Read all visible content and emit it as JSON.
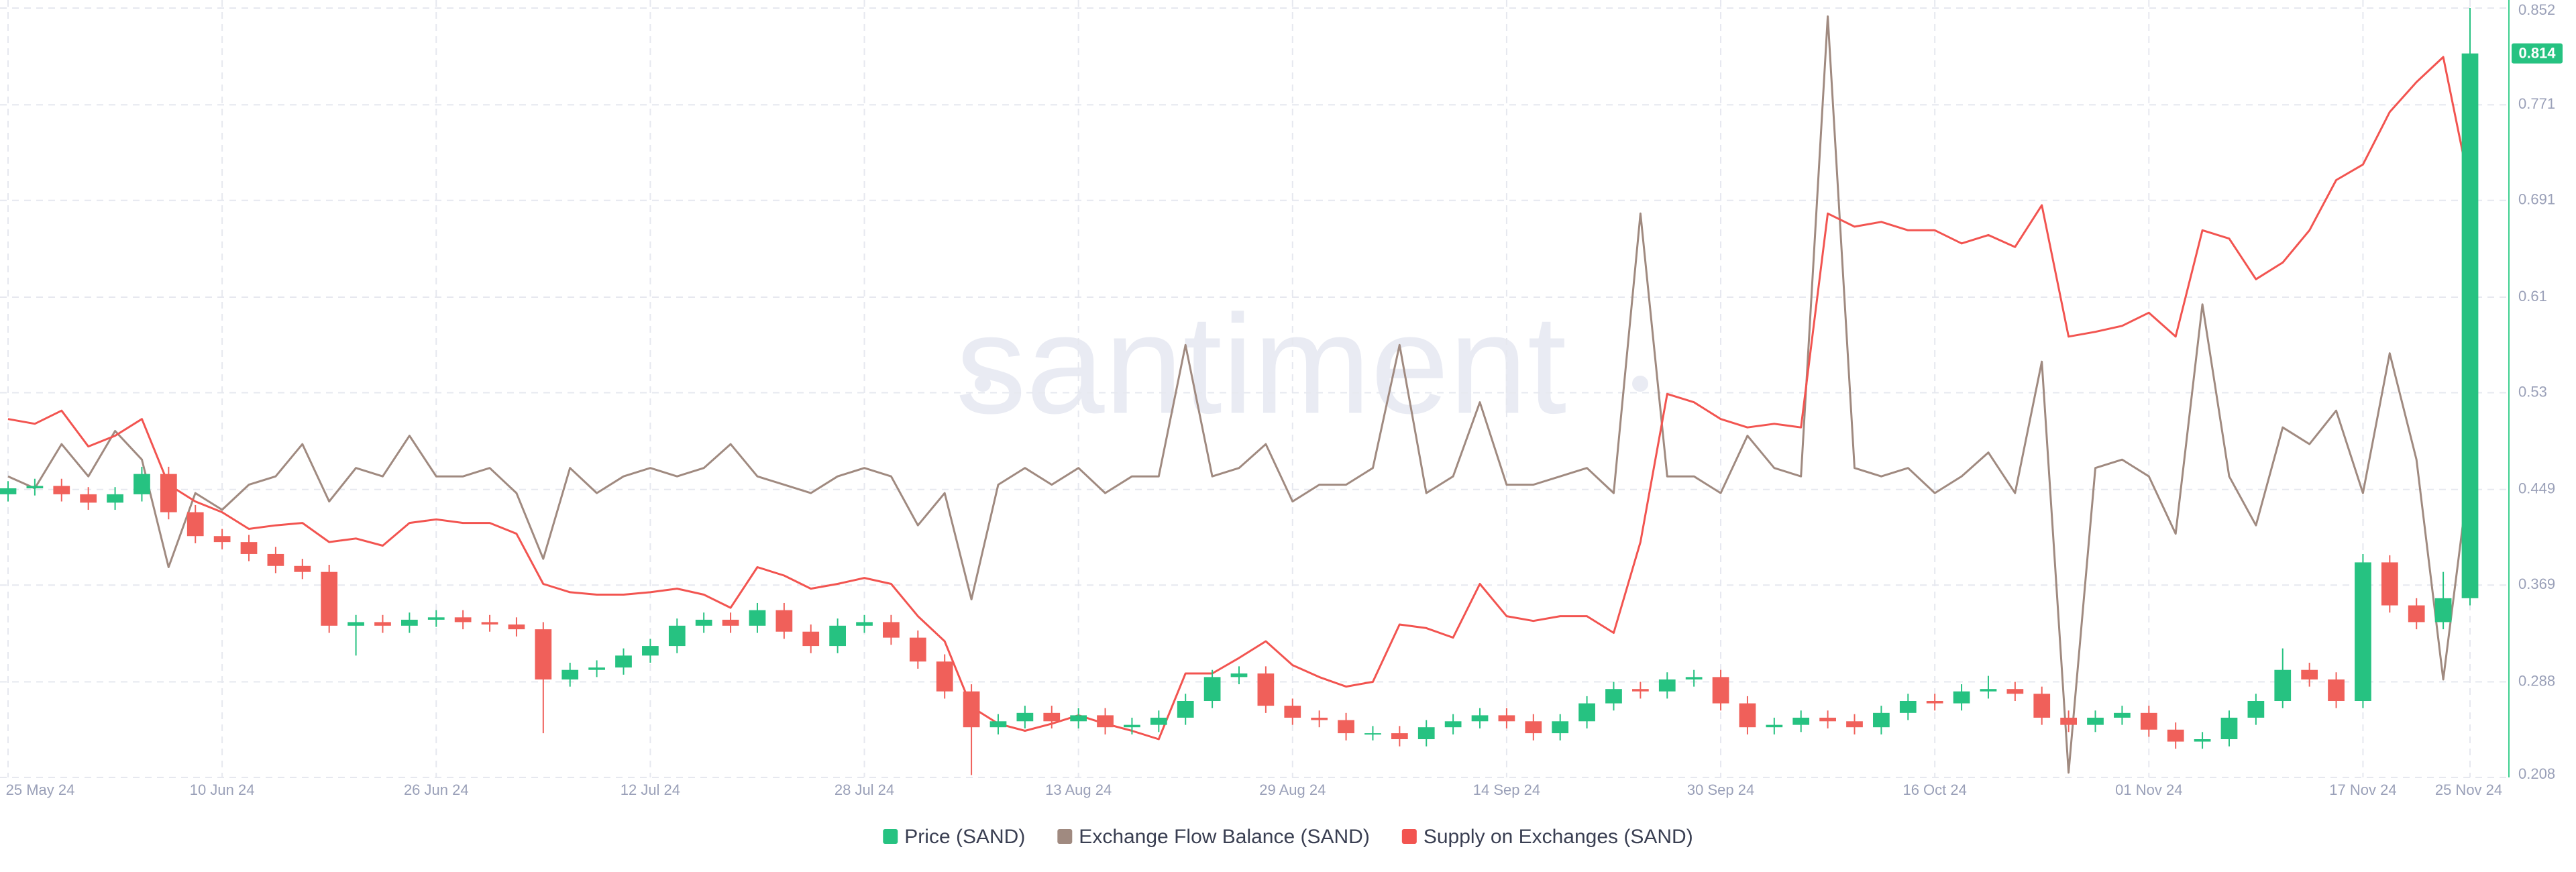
{
  "chart_data": {
    "type": "candlestick",
    "watermark": "santiment",
    "categories": [
      "25 May 24",
      null,
      null,
      null,
      null,
      null,
      null,
      null,
      "10 Jun 24",
      null,
      null,
      null,
      null,
      null,
      null,
      null,
      "26 Jun 24",
      null,
      null,
      null,
      null,
      null,
      null,
      null,
      "12 Jul 24",
      null,
      null,
      null,
      null,
      null,
      null,
      null,
      "28 Jul 24",
      null,
      null,
      null,
      null,
      null,
      null,
      null,
      "13 Aug 24",
      null,
      null,
      null,
      null,
      null,
      null,
      null,
      "29 Aug 24",
      null,
      null,
      null,
      null,
      null,
      null,
      null,
      "14 Sep 24",
      null,
      null,
      null,
      null,
      null,
      null,
      null,
      "30 Sep 24",
      null,
      null,
      null,
      null,
      null,
      null,
      null,
      "16 Oct 24",
      null,
      null,
      null,
      null,
      null,
      null,
      null,
      "01 Nov 24",
      null,
      null,
      null,
      null,
      null,
      null,
      null,
      "17 Nov 24",
      null,
      null,
      null,
      "25 Nov 24"
    ],
    "ylim": [
      0.208,
      0.852
    ],
    "yticks": [
      0.208,
      0.288,
      0.369,
      0.449,
      0.53,
      0.61,
      0.691,
      0.771,
      0.852
    ],
    "grid": true,
    "legend": "bottom",
    "series": [
      {
        "name": "Price (SAND)",
        "type": "candlestick",
        "color": "#26c281",
        "up_color": "#26c281",
        "down_color": "#f0605a",
        "open": [
          0.445,
          0.45,
          0.452,
          0.445,
          0.438,
          0.445,
          0.462,
          0.43,
          0.41,
          0.405,
          0.395,
          0.385,
          0.38,
          0.335,
          0.338,
          0.335,
          0.34,
          0.342,
          0.338,
          0.336,
          0.332,
          0.29,
          0.298,
          0.3,
          0.31,
          0.318,
          0.335,
          0.34,
          0.335,
          0.348,
          0.33,
          0.318,
          0.335,
          0.338,
          0.325,
          0.305,
          0.28,
          0.25,
          0.255,
          0.262,
          0.255,
          0.26,
          0.25,
          0.252,
          0.258,
          0.272,
          0.292,
          0.295,
          0.268,
          0.258,
          0.256,
          0.245,
          0.245,
          0.24,
          0.25,
          0.255,
          0.26,
          0.255,
          0.245,
          0.255,
          0.27,
          0.282,
          0.28,
          0.29,
          0.292,
          0.27,
          0.25,
          0.252,
          0.258,
          0.255,
          0.25,
          0.262,
          0.272,
          0.27,
          0.28,
          0.282,
          0.278,
          0.258,
          0.252,
          0.258,
          0.262,
          0.248,
          0.238,
          0.24,
          0.258,
          0.272,
          0.298,
          0.29,
          0.272,
          0.388,
          0.352,
          0.338,
          0.358
        ],
        "high": [
          0.456,
          0.458,
          0.458,
          0.451,
          0.451,
          0.468,
          0.468,
          0.436,
          0.416,
          0.411,
          0.401,
          0.391,
          0.386,
          0.344,
          0.344,
          0.346,
          0.348,
          0.348,
          0.344,
          0.342,
          0.338,
          0.304,
          0.306,
          0.316,
          0.324,
          0.341,
          0.346,
          0.346,
          0.354,
          0.354,
          0.336,
          0.341,
          0.344,
          0.344,
          0.331,
          0.311,
          0.286,
          0.261,
          0.268,
          0.268,
          0.266,
          0.266,
          0.258,
          0.264,
          0.278,
          0.298,
          0.301,
          0.301,
          0.274,
          0.264,
          0.262,
          0.251,
          0.251,
          0.256,
          0.261,
          0.266,
          0.266,
          0.261,
          0.261,
          0.276,
          0.288,
          0.288,
          0.296,
          0.298,
          0.298,
          0.276,
          0.258,
          0.264,
          0.264,
          0.261,
          0.268,
          0.278,
          0.278,
          0.286,
          0.293,
          0.288,
          0.284,
          0.264,
          0.264,
          0.268,
          0.268,
          0.254,
          0.246,
          0.264,
          0.278,
          0.316,
          0.304,
          0.296,
          0.395,
          0.394,
          0.358,
          0.38,
          0.852
        ],
        "low": [
          0.439,
          0.444,
          0.439,
          0.432,
          0.432,
          0.439,
          0.424,
          0.404,
          0.399,
          0.389,
          0.379,
          0.374,
          0.329,
          0.31,
          0.329,
          0.329,
          0.334,
          0.332,
          0.33,
          0.326,
          0.245,
          0.284,
          0.292,
          0.294,
          0.304,
          0.312,
          0.329,
          0.329,
          0.329,
          0.324,
          0.312,
          0.312,
          0.329,
          0.319,
          0.299,
          0.274,
          0.21,
          0.244,
          0.249,
          0.249,
          0.249,
          0.244,
          0.244,
          0.246,
          0.252,
          0.266,
          0.286,
          0.262,
          0.252,
          0.25,
          0.239,
          0.239,
          0.234,
          0.234,
          0.244,
          0.249,
          0.249,
          0.239,
          0.239,
          0.249,
          0.264,
          0.274,
          0.274,
          0.284,
          0.264,
          0.244,
          0.244,
          0.246,
          0.249,
          0.244,
          0.244,
          0.256,
          0.264,
          0.264,
          0.274,
          0.272,
          0.252,
          0.246,
          0.246,
          0.252,
          0.242,
          0.232,
          0.232,
          0.234,
          0.252,
          0.266,
          0.284,
          0.266,
          0.266,
          0.346,
          0.332,
          0.332,
          0.352
        ],
        "close": [
          0.45,
          0.452,
          0.445,
          0.438,
          0.445,
          0.462,
          0.43,
          0.41,
          0.405,
          0.395,
          0.385,
          0.38,
          0.335,
          0.338,
          0.335,
          0.34,
          0.342,
          0.338,
          0.336,
          0.332,
          0.29,
          0.298,
          0.3,
          0.31,
          0.318,
          0.335,
          0.34,
          0.335,
          0.348,
          0.33,
          0.318,
          0.335,
          0.338,
          0.325,
          0.305,
          0.28,
          0.25,
          0.255,
          0.262,
          0.255,
          0.26,
          0.25,
          0.252,
          0.258,
          0.272,
          0.292,
          0.295,
          0.268,
          0.258,
          0.256,
          0.245,
          0.245,
          0.24,
          0.25,
          0.255,
          0.26,
          0.255,
          0.245,
          0.255,
          0.27,
          0.282,
          0.28,
          0.29,
          0.292,
          0.27,
          0.25,
          0.252,
          0.258,
          0.255,
          0.25,
          0.262,
          0.272,
          0.27,
          0.28,
          0.282,
          0.278,
          0.258,
          0.252,
          0.258,
          0.262,
          0.248,
          0.238,
          0.24,
          0.258,
          0.272,
          0.298,
          0.29,
          0.272,
          0.388,
          0.352,
          0.338,
          0.358,
          0.814
        ]
      },
      {
        "name": "Exchange Flow Balance (SAND)",
        "type": "line",
        "color": "#a08a80",
        "values": [
          0.46,
          0.45,
          0.487,
          0.46,
          0.498,
          0.474,
          0.384,
          0.446,
          0.432,
          0.453,
          0.46,
          0.487,
          0.439,
          0.467,
          0.46,
          0.494,
          0.46,
          0.46,
          0.467,
          0.446,
          0.391,
          0.467,
          0.446,
          0.46,
          0.467,
          0.46,
          0.467,
          0.487,
          0.46,
          0.453,
          0.446,
          0.46,
          0.467,
          0.46,
          0.419,
          0.446,
          0.357,
          0.453,
          0.467,
          0.453,
          0.467,
          0.446,
          0.46,
          0.46,
          0.57,
          0.46,
          0.467,
          0.487,
          0.439,
          0.453,
          0.453,
          0.467,
          0.57,
          0.446,
          0.46,
          0.522,
          0.453,
          0.453,
          0.46,
          0.467,
          0.446,
          0.68,
          0.46,
          0.46,
          0.446,
          0.494,
          0.467,
          0.46,
          0.845,
          0.467,
          0.46,
          0.467,
          0.446,
          0.46,
          0.48,
          0.446,
          0.556,
          0.212,
          0.467,
          0.474,
          0.46,
          0.412,
          0.604,
          0.46,
          0.419,
          0.501,
          0.487,
          0.515,
          0.446,
          0.563,
          0.474,
          0.29,
          0.467
        ]
      },
      {
        "name": "Supply on Exchanges (SAND)",
        "type": "line",
        "color": "#f25450",
        "values": [
          0.508,
          0.504,
          0.515,
          0.485,
          0.494,
          0.508,
          0.453,
          0.439,
          0.43,
          0.416,
          0.419,
          0.421,
          0.405,
          0.408,
          0.402,
          0.421,
          0.424,
          0.421,
          0.421,
          0.412,
          0.37,
          0.363,
          0.361,
          0.361,
          0.363,
          0.366,
          0.361,
          0.35,
          0.384,
          0.377,
          0.366,
          0.37,
          0.375,
          0.37,
          0.343,
          0.322,
          0.267,
          0.253,
          0.247,
          0.253,
          0.26,
          0.253,
          0.247,
          0.24,
          0.295,
          0.295,
          0.308,
          0.322,
          0.302,
          0.292,
          0.284,
          0.288,
          0.336,
          0.333,
          0.325,
          0.37,
          0.343,
          0.339,
          0.343,
          0.343,
          0.329,
          0.405,
          0.529,
          0.522,
          0.508,
          0.501,
          0.504,
          0.501,
          0.68,
          0.669,
          0.673,
          0.666,
          0.666,
          0.655,
          0.662,
          0.652,
          0.687,
          0.577,
          0.581,
          0.586,
          0.597,
          0.577,
          0.666,
          0.659,
          0.625,
          0.639,
          0.666,
          0.708,
          0.721,
          0.765,
          0.79,
          0.811,
          0.701
        ]
      }
    ]
  }
}
